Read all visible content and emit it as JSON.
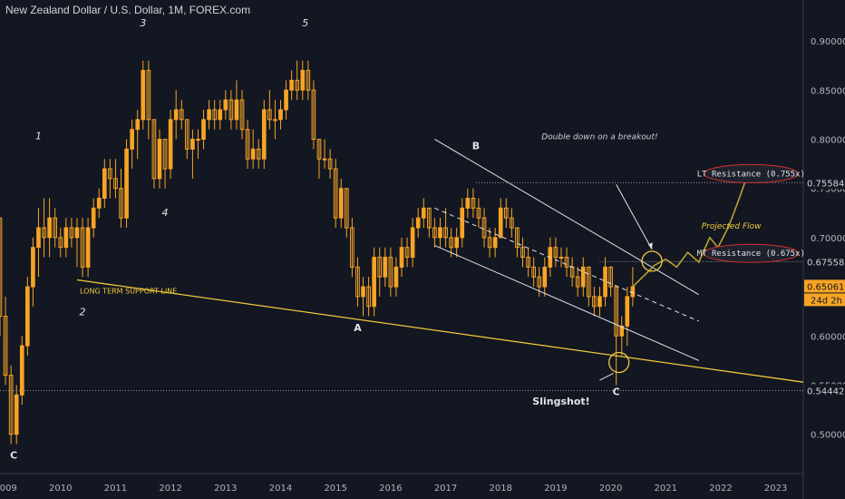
{
  "chart_data": {
    "type": "candlestick",
    "title": "New Zealand Dollar / U.S. Dollar, 1M, FOREX.com",
    "x_ticks": [
      "2009",
      "2010",
      "2011",
      "2012",
      "2013",
      "2014",
      "2015",
      "2016",
      "2017",
      "2018",
      "2019",
      "2020",
      "2021",
      "2022",
      "2023"
    ],
    "y_ticks": [
      "0.90000",
      "0.85000",
      "0.80000",
      "0.75000",
      "0.70000",
      "0.65000",
      "0.60000",
      "0.55000",
      "0.50000"
    ],
    "ylim": [
      0.46,
      0.925
    ],
    "xlim": [
      2008.9,
      2023.5
    ],
    "candles": [
      [
        2008.9,
        0.72,
        0.72,
        0.6,
        0.62
      ],
      [
        2009.0,
        0.62,
        0.64,
        0.55,
        0.56
      ],
      [
        2009.1,
        0.56,
        0.57,
        0.49,
        0.5
      ],
      [
        2009.2,
        0.5,
        0.55,
        0.49,
        0.54
      ],
      [
        2009.3,
        0.54,
        0.6,
        0.53,
        0.59
      ],
      [
        2009.4,
        0.59,
        0.66,
        0.58,
        0.65
      ],
      [
        2009.5,
        0.65,
        0.7,
        0.63,
        0.69
      ],
      [
        2009.6,
        0.69,
        0.73,
        0.66,
        0.71
      ],
      [
        2009.7,
        0.71,
        0.74,
        0.68,
        0.7
      ],
      [
        2009.8,
        0.7,
        0.74,
        0.68,
        0.72
      ],
      [
        2009.9,
        0.72,
        0.73,
        0.69,
        0.7
      ],
      [
        2010.0,
        0.7,
        0.71,
        0.68,
        0.69
      ],
      [
        2010.1,
        0.69,
        0.72,
        0.68,
        0.71
      ],
      [
        2010.2,
        0.71,
        0.72,
        0.69,
        0.7
      ],
      [
        2010.3,
        0.7,
        0.72,
        0.67,
        0.71
      ],
      [
        2010.4,
        0.71,
        0.72,
        0.66,
        0.67
      ],
      [
        2010.5,
        0.67,
        0.72,
        0.66,
        0.71
      ],
      [
        2010.6,
        0.71,
        0.74,
        0.7,
        0.73
      ],
      [
        2010.7,
        0.73,
        0.75,
        0.72,
        0.74
      ],
      [
        2010.8,
        0.74,
        0.78,
        0.73,
        0.77
      ],
      [
        2010.9,
        0.77,
        0.78,
        0.74,
        0.76
      ],
      [
        2011.0,
        0.76,
        0.78,
        0.74,
        0.75
      ],
      [
        2011.1,
        0.75,
        0.77,
        0.71,
        0.72
      ],
      [
        2011.2,
        0.72,
        0.8,
        0.71,
        0.79
      ],
      [
        2011.3,
        0.79,
        0.82,
        0.77,
        0.81
      ],
      [
        2011.4,
        0.81,
        0.83,
        0.78,
        0.82
      ],
      [
        2011.5,
        0.82,
        0.88,
        0.81,
        0.87
      ],
      [
        2011.6,
        0.87,
        0.88,
        0.8,
        0.82
      ],
      [
        2011.7,
        0.82,
        0.82,
        0.75,
        0.76
      ],
      [
        2011.8,
        0.76,
        0.81,
        0.75,
        0.8
      ],
      [
        2011.9,
        0.8,
        0.8,
        0.75,
        0.77
      ],
      [
        2012.0,
        0.77,
        0.83,
        0.76,
        0.82
      ],
      [
        2012.1,
        0.82,
        0.85,
        0.8,
        0.83
      ],
      [
        2012.2,
        0.83,
        0.84,
        0.81,
        0.82
      ],
      [
        2012.3,
        0.82,
        0.82,
        0.78,
        0.79
      ],
      [
        2012.4,
        0.79,
        0.81,
        0.76,
        0.8
      ],
      [
        2012.5,
        0.8,
        0.81,
        0.78,
        0.8
      ],
      [
        2012.6,
        0.8,
        0.83,
        0.79,
        0.82
      ],
      [
        2012.7,
        0.82,
        0.84,
        0.81,
        0.83
      ],
      [
        2012.8,
        0.83,
        0.84,
        0.81,
        0.82
      ],
      [
        2012.9,
        0.82,
        0.84,
        0.81,
        0.83
      ],
      [
        2013.0,
        0.83,
        0.85,
        0.82,
        0.84
      ],
      [
        2013.1,
        0.84,
        0.85,
        0.81,
        0.82
      ],
      [
        2013.2,
        0.82,
        0.86,
        0.81,
        0.84
      ],
      [
        2013.3,
        0.84,
        0.85,
        0.8,
        0.81
      ],
      [
        2013.4,
        0.81,
        0.82,
        0.77,
        0.78
      ],
      [
        2013.5,
        0.78,
        0.81,
        0.77,
        0.79
      ],
      [
        2013.6,
        0.79,
        0.8,
        0.77,
        0.78
      ],
      [
        2013.7,
        0.78,
        0.84,
        0.77,
        0.83
      ],
      [
        2013.8,
        0.83,
        0.85,
        0.81,
        0.82
      ],
      [
        2013.9,
        0.82,
        0.84,
        0.8,
        0.82
      ],
      [
        2014.0,
        0.82,
        0.84,
        0.81,
        0.83
      ],
      [
        2014.1,
        0.83,
        0.86,
        0.82,
        0.85
      ],
      [
        2014.2,
        0.85,
        0.87,
        0.84,
        0.86
      ],
      [
        2014.3,
        0.86,
        0.88,
        0.84,
        0.85
      ],
      [
        2014.4,
        0.85,
        0.88,
        0.84,
        0.87
      ],
      [
        2014.5,
        0.87,
        0.88,
        0.84,
        0.85
      ],
      [
        2014.6,
        0.85,
        0.86,
        0.79,
        0.8
      ],
      [
        2014.7,
        0.8,
        0.8,
        0.76,
        0.78
      ],
      [
        2014.8,
        0.78,
        0.8,
        0.77,
        0.78
      ],
      [
        2014.9,
        0.78,
        0.79,
        0.76,
        0.77
      ],
      [
        2015.0,
        0.77,
        0.78,
        0.71,
        0.72
      ],
      [
        2015.1,
        0.72,
        0.76,
        0.71,
        0.75
      ],
      [
        2015.2,
        0.75,
        0.75,
        0.7,
        0.71
      ],
      [
        2015.3,
        0.71,
        0.72,
        0.66,
        0.67
      ],
      [
        2015.4,
        0.67,
        0.68,
        0.63,
        0.64
      ],
      [
        2015.5,
        0.64,
        0.66,
        0.62,
        0.65
      ],
      [
        2015.6,
        0.65,
        0.66,
        0.62,
        0.63
      ],
      [
        2015.7,
        0.63,
        0.69,
        0.62,
        0.68
      ],
      [
        2015.8,
        0.68,
        0.69,
        0.64,
        0.66
      ],
      [
        2015.9,
        0.66,
        0.69,
        0.65,
        0.68
      ],
      [
        2016.0,
        0.68,
        0.69,
        0.64,
        0.65
      ],
      [
        2016.1,
        0.65,
        0.68,
        0.64,
        0.67
      ],
      [
        2016.2,
        0.67,
        0.7,
        0.66,
        0.69
      ],
      [
        2016.3,
        0.69,
        0.7,
        0.67,
        0.68
      ],
      [
        2016.4,
        0.68,
        0.72,
        0.67,
        0.71
      ],
      [
        2016.5,
        0.71,
        0.73,
        0.7,
        0.72
      ],
      [
        2016.6,
        0.72,
        0.74,
        0.71,
        0.73
      ],
      [
        2016.7,
        0.73,
        0.73,
        0.7,
        0.71
      ],
      [
        2016.8,
        0.71,
        0.72,
        0.69,
        0.7
      ],
      [
        2016.9,
        0.7,
        0.72,
        0.69,
        0.71
      ],
      [
        2017.0,
        0.71,
        0.73,
        0.69,
        0.7
      ],
      [
        2017.1,
        0.7,
        0.71,
        0.68,
        0.69
      ],
      [
        2017.2,
        0.69,
        0.71,
        0.68,
        0.7
      ],
      [
        2017.3,
        0.7,
        0.74,
        0.69,
        0.73
      ],
      [
        2017.4,
        0.73,
        0.75,
        0.72,
        0.74
      ],
      [
        2017.5,
        0.74,
        0.75,
        0.72,
        0.73
      ],
      [
        2017.6,
        0.73,
        0.74,
        0.71,
        0.72
      ],
      [
        2017.7,
        0.72,
        0.73,
        0.69,
        0.7
      ],
      [
        2017.8,
        0.7,
        0.71,
        0.68,
        0.69
      ],
      [
        2017.9,
        0.69,
        0.71,
        0.68,
        0.7
      ],
      [
        2018.0,
        0.7,
        0.74,
        0.7,
        0.73
      ],
      [
        2018.1,
        0.73,
        0.74,
        0.71,
        0.72
      ],
      [
        2018.2,
        0.72,
        0.73,
        0.7,
        0.71
      ],
      [
        2018.3,
        0.71,
        0.71,
        0.68,
        0.69
      ],
      [
        2018.4,
        0.69,
        0.7,
        0.67,
        0.68
      ],
      [
        2018.5,
        0.68,
        0.69,
        0.66,
        0.67
      ],
      [
        2018.6,
        0.67,
        0.68,
        0.65,
        0.66
      ],
      [
        2018.7,
        0.66,
        0.67,
        0.64,
        0.65
      ],
      [
        2018.8,
        0.65,
        0.68,
        0.64,
        0.67
      ],
      [
        2018.9,
        0.67,
        0.7,
        0.66,
        0.69
      ],
      [
        2019.0,
        0.69,
        0.7,
        0.67,
        0.68
      ],
      [
        2019.1,
        0.68,
        0.69,
        0.67,
        0.68
      ],
      [
        2019.2,
        0.68,
        0.69,
        0.66,
        0.67
      ],
      [
        2019.3,
        0.67,
        0.68,
        0.65,
        0.66
      ],
      [
        2019.4,
        0.66,
        0.67,
        0.64,
        0.65
      ],
      [
        2019.5,
        0.65,
        0.68,
        0.64,
        0.67
      ],
      [
        2019.6,
        0.67,
        0.67,
        0.63,
        0.64
      ],
      [
        2019.7,
        0.64,
        0.65,
        0.62,
        0.63
      ],
      [
        2019.8,
        0.63,
        0.65,
        0.62,
        0.64
      ],
      [
        2019.9,
        0.64,
        0.68,
        0.63,
        0.67
      ],
      [
        2020.0,
        0.67,
        0.67,
        0.64,
        0.65
      ],
      [
        2020.1,
        0.65,
        0.65,
        0.55,
        0.6
      ],
      [
        2020.2,
        0.6,
        0.62,
        0.58,
        0.61
      ],
      [
        2020.3,
        0.61,
        0.65,
        0.59,
        0.64
      ],
      [
        2020.4,
        0.64,
        0.67,
        0.63,
        0.65
      ]
    ],
    "lines": {
      "lt_support_label": "LONG TERM SUPPORT LINE",
      "mt_resistance_label": "MT Resistance (0.675x)",
      "lt_resistance_label": "LT Resistance (0.755x)",
      "projected_label": "Projected Flow",
      "breakout_note": "Double down on a breakout!",
      "slingshot_note": "Slingshot!"
    },
    "waves": [
      {
        "text": "1",
        "x": 2009.6,
        "y": 0.8
      },
      {
        "text": "2",
        "x": 2010.4,
        "y": 0.621
      },
      {
        "text": "3",
        "x": 2011.5,
        "y": 0.915
      },
      {
        "text": "4",
        "x": 2011.9,
        "y": 0.722
      },
      {
        "text": "5",
        "x": 2014.45,
        "y": 0.915
      },
      {
        "text": "C",
        "x": 2009.15,
        "y": 0.475
      },
      {
        "text": "A",
        "x": 2015.4,
        "y": 0.605
      },
      {
        "text": "B",
        "x": 2017.55,
        "y": 0.79
      },
      {
        "text": "C",
        "x": 2020.1,
        "y": 0.54
      }
    ],
    "price_levels": {
      "lt": "0.75584",
      "mt": "0.67558",
      "current": "0.65061",
      "countdown": "24d 2h",
      "low": "0.54442"
    },
    "grid": false,
    "colors": {
      "candle": "#f7a425",
      "background": "#131722",
      "support": "#f0c93a",
      "channel": "#e0e3eb",
      "accent": "#b9a330"
    }
  }
}
